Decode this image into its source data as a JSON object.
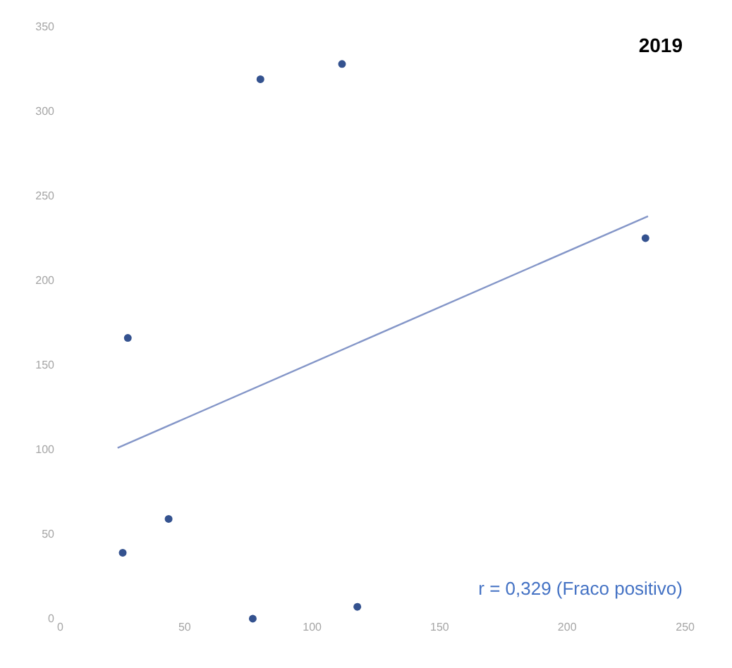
{
  "chart_data": {
    "type": "scatter",
    "title": "2019",
    "annotations": [
      "r =  0,329 (Fraco positivo)"
    ],
    "x": [
      26,
      44,
      28,
      77,
      118,
      80,
      112,
      231
    ],
    "series": [
      {
        "color": "#34528f",
        "values": [
          39,
          59,
          166,
          0,
          7,
          319,
          328,
          225
        ]
      },
      {
        "type": "line",
        "color": "#8496c8",
        "marker": "none",
        "x": [
          24,
          232
        ],
        "values": [
          101,
          238
        ]
      }
    ],
    "xlim": [
      0,
      250
    ],
    "xticks": [
      0,
      50,
      100,
      150,
      200,
      250
    ],
    "ylim": [
      0,
      350
    ],
    "yticks": [
      0,
      50,
      100,
      150,
      200,
      250,
      300,
      350
    ],
    "grid": false,
    "marker": "circle",
    "line_style": "solid"
  }
}
